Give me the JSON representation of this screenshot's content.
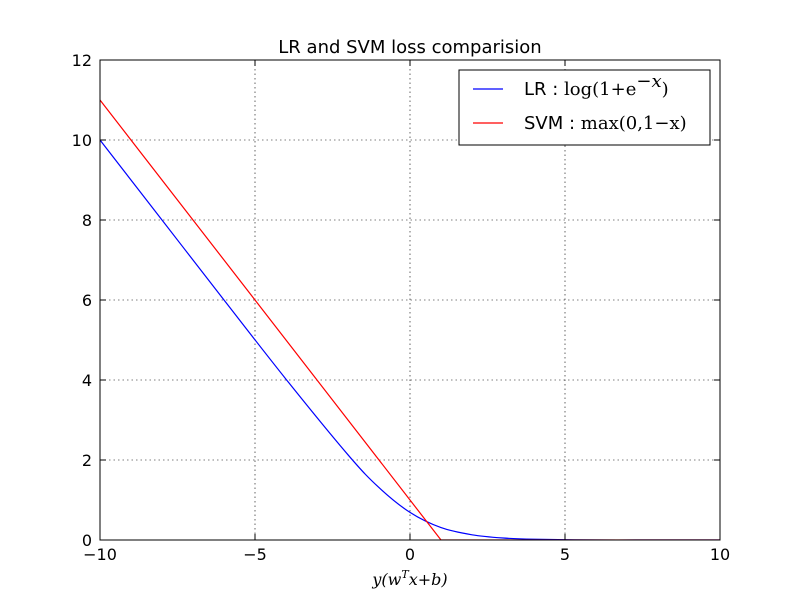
{
  "chart_data": {
    "type": "line",
    "title": "LR and SVM loss comparision",
    "xlabel": "y(w^T x+b)",
    "ylabel": "",
    "xlim": [
      -10,
      10
    ],
    "ylim": [
      0,
      12
    ],
    "xticks": [
      -10,
      -5,
      0,
      5,
      10
    ],
    "xtick_labels": [
      "−10",
      "−5",
      "0",
      "5",
      "10"
    ],
    "yticks": [
      0,
      2,
      4,
      6,
      8,
      10,
      12
    ],
    "ytick_labels": [
      "0",
      "2",
      "4",
      "6",
      "8",
      "10",
      "12"
    ],
    "grid": true,
    "grid_style": "dotted",
    "legend_position": "top-right",
    "series": [
      {
        "name": "LR : log(1+e^{-x})",
        "legend_prefix": "LR : ",
        "legend_formula": "log(1+e",
        "legend_formula_sup": "−x",
        "legend_formula_tail": ")",
        "color": "#0000ff",
        "function": "log(1+e^{-x})",
        "x": [
          -10,
          -8,
          -6,
          -4,
          -2,
          -1,
          0,
          1,
          2,
          3,
          4,
          6,
          8,
          10
        ],
        "y": [
          10.0,
          8.0,
          6.0,
          4.02,
          2.13,
          1.31,
          0.69,
          0.31,
          0.13,
          0.05,
          0.02,
          0.0,
          0.0,
          0.0
        ]
      },
      {
        "name": "SVM : max(0,1-x)",
        "legend_prefix": "SVM : ",
        "legend_formula": "max(0,1−x)",
        "color": "#ff0000",
        "function": "max(0,1-x)",
        "x": [
          -10,
          -5,
          0,
          1,
          5,
          10
        ],
        "y": [
          11,
          6,
          1,
          0,
          0,
          0
        ]
      }
    ]
  }
}
